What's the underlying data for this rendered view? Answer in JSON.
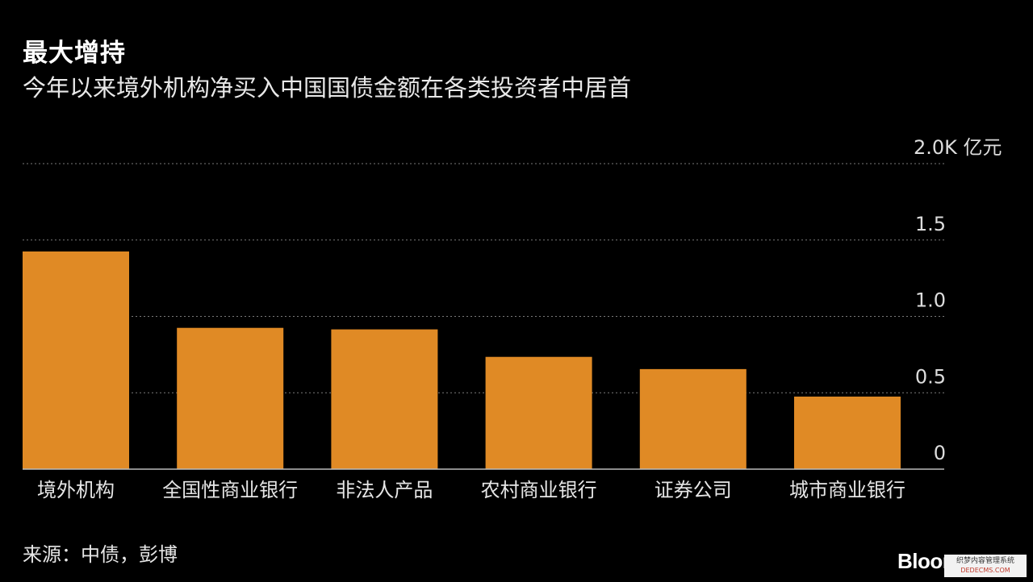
{
  "title": "最大增持",
  "subtitle": "今年以来境外机构净买入中国国债金额在各类投资者中居首",
  "source": "来源：中债，彭博",
  "brand": "Bloomberg",
  "watermark": {
    "line1": "织梦内容管理系统",
    "line2": "DEDECMS.COM"
  },
  "colors": {
    "background": "#000000",
    "bar": "#E08A25",
    "grid": "#7a7a7a",
    "text": "#ffffff"
  },
  "chart_data": {
    "type": "bar",
    "categories": [
      "境外机构",
      "全国性商业银行",
      "非法人产品",
      "农村商业银行",
      "证券公司",
      "城市商业银行"
    ],
    "values": [
      1425,
      925,
      915,
      735,
      655,
      475
    ],
    "ylim": [
      0,
      2000
    ],
    "yticks": [
      {
        "value": 0,
        "label": "0"
      },
      {
        "value": 500,
        "label": "0.5"
      },
      {
        "value": 1000,
        "label": "1.0"
      },
      {
        "value": 1500,
        "label": "1.5"
      },
      {
        "value": 2000,
        "label": "2.0K 亿元"
      }
    ],
    "grid": "dotted horizontal",
    "legend": "none"
  }
}
